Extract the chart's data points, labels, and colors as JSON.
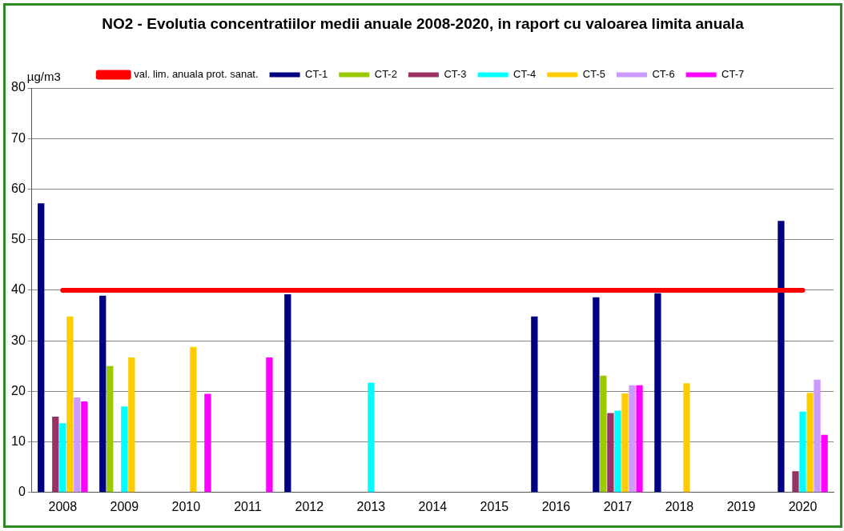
{
  "chart_data": {
    "type": "bar",
    "title": "NO2 - Evolutia concentratiilor medii anuale 2008-2020, in raport cu valoarea limita anuala",
    "ylabel": "µg/m3",
    "categories": [
      "2008",
      "2009",
      "2010",
      "2011",
      "2012",
      "2013",
      "2014",
      "2015",
      "2016",
      "2017",
      "2018",
      "2019",
      "2020"
    ],
    "ylim": [
      0,
      80
    ],
    "yticks": [
      0,
      10,
      20,
      30,
      40,
      50,
      60,
      70,
      80
    ],
    "grid": "y",
    "legend": "top",
    "series": [
      {
        "name": "CT-1",
        "color": "#000080",
        "values": [
          57.2,
          38.9,
          null,
          null,
          39.2,
          null,
          null,
          null,
          34.8,
          38.6,
          39.4,
          null,
          53.7
        ]
      },
      {
        "name": "CT-2",
        "color": "#99cc00",
        "values": [
          null,
          25.0,
          null,
          null,
          null,
          null,
          null,
          null,
          null,
          23.1,
          null,
          null,
          null
        ]
      },
      {
        "name": "CT-3",
        "color": "#993366",
        "values": [
          15.0,
          null,
          null,
          null,
          null,
          null,
          null,
          null,
          null,
          15.7,
          null,
          null,
          4.2
        ]
      },
      {
        "name": "CT-4",
        "color": "#00ffff",
        "values": [
          13.7,
          17.0,
          null,
          null,
          null,
          21.7,
          null,
          null,
          null,
          16.2,
          null,
          null,
          16.0
        ]
      },
      {
        "name": "CT-5",
        "color": "#ffcc00",
        "values": [
          34.8,
          26.7,
          28.8,
          null,
          null,
          null,
          null,
          null,
          null,
          19.6,
          21.6,
          null,
          19.7
        ]
      },
      {
        "name": "CT-6",
        "color": "#cc99ff",
        "values": [
          18.8,
          null,
          null,
          null,
          null,
          null,
          null,
          null,
          null,
          21.2,
          null,
          null,
          22.3
        ]
      },
      {
        "name": "CT-7",
        "color": "#ff00ff",
        "values": [
          18.0,
          null,
          19.5,
          26.7,
          null,
          null,
          null,
          null,
          null,
          21.2,
          null,
          null,
          11.4
        ]
      },
      {
        "name": "val. lim. anuala prot. sanat.",
        "type": "line",
        "color": "#ff0000",
        "values": [
          40,
          40,
          40,
          40,
          40,
          40,
          40,
          40,
          40,
          40,
          40,
          40,
          40
        ]
      }
    ]
  }
}
